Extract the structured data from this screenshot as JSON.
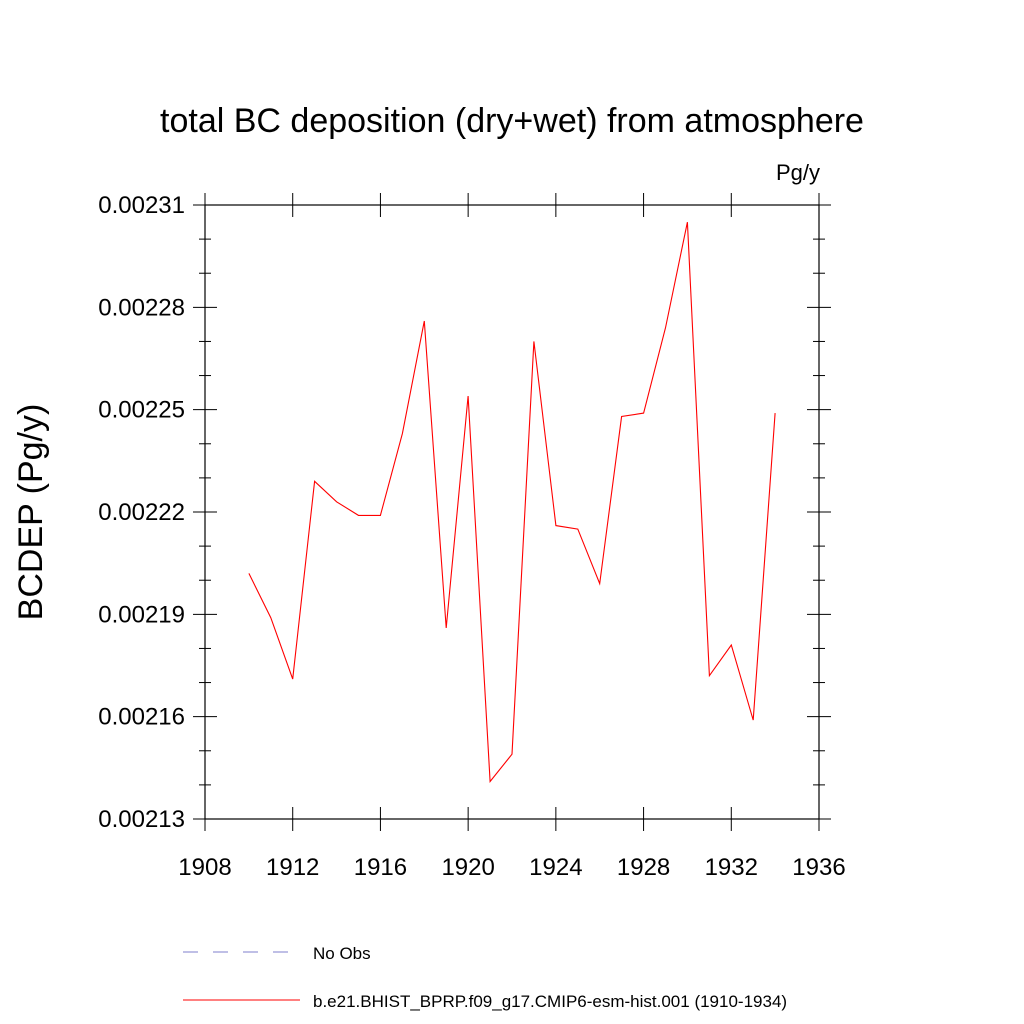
{
  "chart_data": {
    "type": "line",
    "title": "total BC deposition (dry+wet) from atmosphere",
    "units": "Pg/y",
    "ylabel": "BCDEP  (Pg/y)",
    "xlabel": "",
    "xlim": [
      1908,
      1936
    ],
    "ylim": [
      0.00213,
      0.00231
    ],
    "x_ticks": [
      1908,
      1912,
      1916,
      1920,
      1924,
      1928,
      1932,
      1936
    ],
    "x_tick_labels": [
      "1908",
      "1912",
      "1916",
      "1920",
      "1924",
      "1928",
      "1932",
      "1936"
    ],
    "y_ticks": [
      0.00213,
      0.00216,
      0.00219,
      0.00222,
      0.00225,
      0.00228,
      0.00231
    ],
    "y_tick_labels": [
      "0.00213",
      "0.00216",
      "0.00219",
      "0.00222",
      "0.00225",
      "0.00228",
      "0.00231"
    ],
    "grid": false,
    "legend_position": "bottom",
    "series": [
      {
        "name": "b.e21.BHIST_BPRP.f09_g17.CMIP6-esm-hist.001 (1910-1934)",
        "color": "#ff0000",
        "dash": "solid",
        "x": [
          1910,
          1911,
          1912,
          1913,
          1914,
          1915,
          1916,
          1917,
          1918,
          1919,
          1920,
          1921,
          1922,
          1923,
          1924,
          1925,
          1926,
          1927,
          1928,
          1929,
          1930,
          1931,
          1932,
          1933,
          1934
        ],
        "y": [
          0.002202,
          0.002189,
          0.002171,
          0.002229,
          0.002223,
          0.002219,
          0.002219,
          0.002243,
          0.002276,
          0.002186,
          0.002254,
          0.002141,
          0.002149,
          0.00227,
          0.002216,
          0.002215,
          0.002199,
          0.002248,
          0.002249,
          0.002274,
          0.002305,
          0.002172,
          0.002181,
          0.002159,
          0.002249
        ]
      }
    ],
    "legend_entries": [
      {
        "label": "No Obs",
        "color": "#7f7fcc",
        "dash": "dashed"
      },
      {
        "label": "b.e21.BHIST_BPRP.f09_g17.CMIP6-esm-hist.001 (1910-1934)",
        "color": "#ff0000",
        "dash": "solid"
      }
    ]
  }
}
